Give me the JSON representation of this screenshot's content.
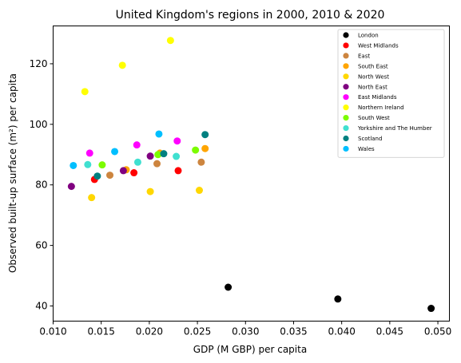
{
  "chart_data": {
    "type": "scatter",
    "title": "United Kingdom's regions in 2000, 2010 & 2020",
    "xlabel": "GDP (M GBP) per capita",
    "ylabel": "Observed built-up surface (m²) per capita",
    "xlim": [
      0.01,
      0.0512
    ],
    "ylim": [
      35,
      132.5
    ],
    "xticks": [
      0.01,
      0.015,
      0.02,
      0.025,
      0.03,
      0.035,
      0.04,
      0.045,
      0.05
    ],
    "xtick_labels": [
      "0.010",
      "0.015",
      "0.020",
      "0.025",
      "0.030",
      "0.035",
      "0.040",
      "0.045",
      "0.050"
    ],
    "yticks": [
      40,
      60,
      80,
      100,
      120
    ],
    "ytick_labels": [
      "40",
      "60",
      "80",
      "100",
      "120"
    ],
    "grid": false,
    "legend_position": "top-right",
    "series": [
      {
        "name": "London",
        "color": "#000000",
        "points": [
          [
            0.0282,
            46.2
          ],
          [
            0.0396,
            42.3
          ],
          [
            0.0493,
            39.2
          ]
        ]
      },
      {
        "name": "West Midlands",
        "color": "#ff0000",
        "points": [
          [
            0.0143,
            81.8
          ],
          [
            0.0184,
            84.0
          ],
          [
            0.023,
            84.7
          ]
        ]
      },
      {
        "name": "East",
        "color": "#cd853f",
        "points": [
          [
            0.0159,
            83.2
          ],
          [
            0.0208,
            87.0
          ],
          [
            0.0254,
            87.5
          ]
        ]
      },
      {
        "name": "South East",
        "color": "#ffa500",
        "points": [
          [
            0.0176,
            85.0
          ],
          [
            0.0211,
            90.5
          ],
          [
            0.0258,
            92.0
          ]
        ]
      },
      {
        "name": "North West",
        "color": "#ffd700",
        "points": [
          [
            0.014,
            75.8
          ],
          [
            0.0201,
            77.8
          ],
          [
            0.0252,
            78.2
          ]
        ]
      },
      {
        "name": "North East",
        "color": "#800080",
        "points": [
          [
            0.0119,
            79.5
          ],
          [
            0.0173,
            84.7
          ],
          [
            0.0201,
            89.5
          ]
        ]
      },
      {
        "name": "East Midlands",
        "color": "#ff00ff",
        "points": [
          [
            0.0138,
            90.5
          ],
          [
            0.0187,
            93.2
          ],
          [
            0.0229,
            94.5
          ]
        ]
      },
      {
        "name": "Northern Ireland",
        "color": "#ffff00",
        "points": [
          [
            0.0133,
            110.8
          ],
          [
            0.0172,
            119.5
          ],
          [
            0.0222,
            127.7
          ]
        ]
      },
      {
        "name": "South West",
        "color": "#7cfc00",
        "points": [
          [
            0.0151,
            86.6
          ],
          [
            0.0209,
            90.0
          ],
          [
            0.0248,
            91.5
          ]
        ]
      },
      {
        "name": "Yorkshire and The Humber",
        "color": "#40e0d0",
        "points": [
          [
            0.0136,
            86.7
          ],
          [
            0.0188,
            87.5
          ],
          [
            0.0228,
            89.4
          ]
        ]
      },
      {
        "name": "Scotland",
        "color": "#008080",
        "points": [
          [
            0.0146,
            82.9
          ],
          [
            0.0215,
            90.3
          ],
          [
            0.0258,
            96.6
          ]
        ]
      },
      {
        "name": "Wales",
        "color": "#00bfff",
        "points": [
          [
            0.0121,
            86.4
          ],
          [
            0.0164,
            91.0
          ],
          [
            0.021,
            96.8
          ]
        ]
      }
    ]
  }
}
